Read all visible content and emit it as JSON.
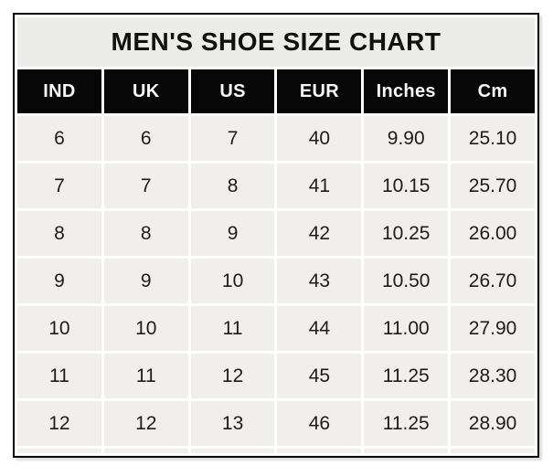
{
  "page_title": "MEN'S SHOE SIZE CHART",
  "chart_data": {
    "type": "table",
    "title": "MEN'S SHOE SIZE CHART",
    "columns": [
      "IND",
      "UK",
      "US",
      "EUR",
      "Inches",
      "Cm"
    ],
    "rows": [
      [
        "6",
        "6",
        "7",
        "40",
        "9.90",
        "25.10"
      ],
      [
        "7",
        "7",
        "8",
        "41",
        "10.15",
        "25.70"
      ],
      [
        "8",
        "8",
        "9",
        "42",
        "10.25",
        "26.00"
      ],
      [
        "9",
        "9",
        "10",
        "43",
        "10.50",
        "26.70"
      ],
      [
        "10",
        "10",
        "11",
        "44",
        "11.00",
        "27.90"
      ],
      [
        "11",
        "11",
        "12",
        "45",
        "11.25",
        "28.30"
      ],
      [
        "12",
        "12",
        "13",
        "46",
        "11.25",
        "28.90"
      ]
    ],
    "layout": {
      "legend": "none",
      "grid": "white cell separators on light gray cells",
      "header_style": "black background, white bold text"
    }
  },
  "colors": {
    "title_bg": "#ececea",
    "header_bg": "#070707",
    "header_text": "#f8f8f8",
    "cell_bg": "#f0efee",
    "separator": "#ffffff",
    "outer_border": "#000000",
    "body_text": "#1c1c1c",
    "page_bg": "#ffffff"
  }
}
